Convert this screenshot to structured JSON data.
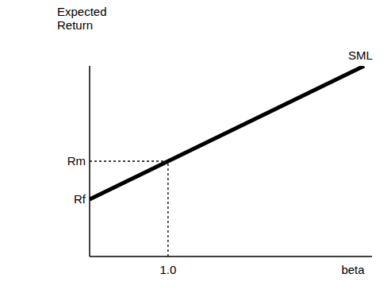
{
  "chart_data": {
    "type": "line",
    "xlabel": "beta",
    "ylabel": "Expected Return",
    "x": [
      0,
      1,
      3.5
    ],
    "series": [
      {
        "name": "SML",
        "color": "#000000",
        "values": [
          3.6,
          6.0,
          12.0
        ]
      }
    ],
    "xlim": [
      0,
      3.6
    ],
    "ylim": [
      0,
      12
    ],
    "xticks": [
      {
        "value": 1,
        "label": "1.0"
      }
    ],
    "yticks": [
      {
        "value": 3.6,
        "label": "Rf"
      },
      {
        "value": 6.0,
        "label": "Rm"
      }
    ],
    "grid": false
  }
}
